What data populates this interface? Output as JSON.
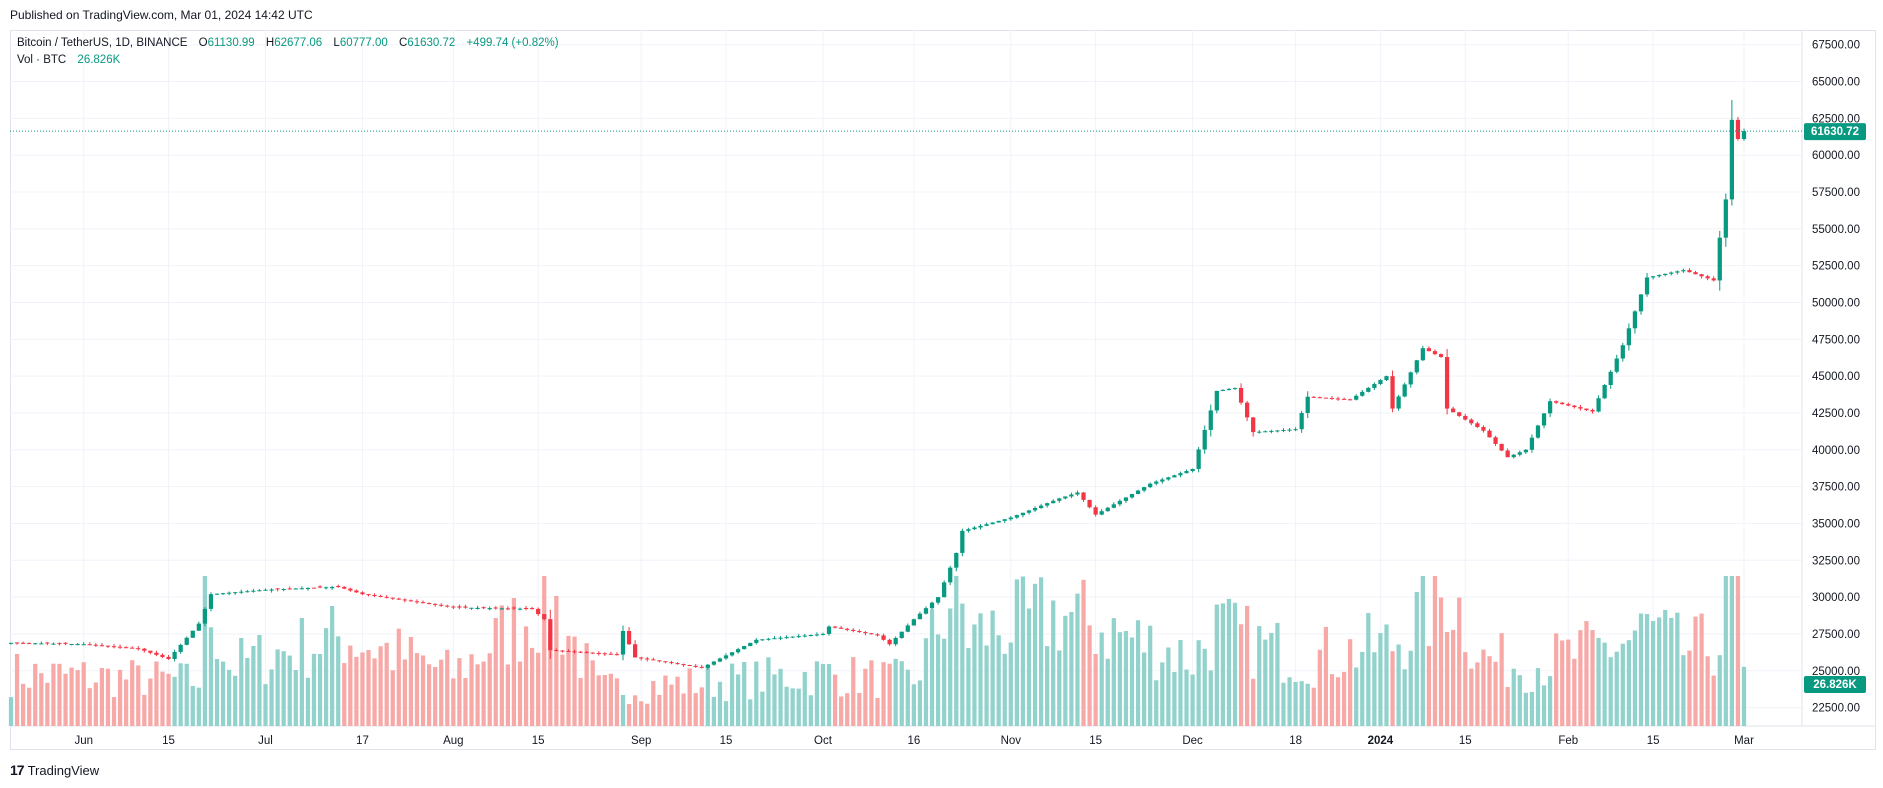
{
  "header": {
    "published": "Published on TradingView.com, Mar 01, 2024 14:42 UTC"
  },
  "legend": {
    "symbol": "Bitcoin / TetherUS, 1D, BINANCE",
    "o_label": "O",
    "o_value": "61130.99",
    "h_label": "H",
    "h_value": "62677.06",
    "l_label": "L",
    "l_value": "60777.00",
    "c_label": "C",
    "c_value": "61630.72",
    "change": "+499.74 (+0.82%)",
    "vol_label": "Vol · BTC",
    "vol_value": "26.826K"
  },
  "footer": {
    "brand": "TradingView",
    "logo_glyph": "17"
  },
  "colors": {
    "up": "#089981",
    "down": "#f23645",
    "vol_up": "#92d2cc",
    "vol_down": "#f7a9a7",
    "grid": "#f0f3fa",
    "price_line": "#089981"
  },
  "chart_data": {
    "type": "candlestick",
    "title": "Bitcoin / TetherUS, 1D, BINANCE",
    "interval": "1D",
    "date_range": [
      "2023-05-20",
      "2024-03-01"
    ],
    "ylim": [
      21250,
      68500
    ],
    "y_ticks": [
      "67500.00",
      "65000.00",
      "62500.00",
      "60000.00",
      "57500.00",
      "55000.00",
      "52500.00",
      "50000.00",
      "47500.00",
      "45000.00",
      "42500.00",
      "40000.00",
      "37500.00",
      "35000.00",
      "32500.00",
      "30000.00",
      "27500.00",
      "25000.00",
      "22500.00"
    ],
    "x_ticks": [
      {
        "label": "Jun",
        "date": "2023-06-01",
        "bold": false
      },
      {
        "label": "15",
        "date": "2023-06-15",
        "bold": false
      },
      {
        "label": "Jul",
        "date": "2023-07-01",
        "bold": false
      },
      {
        "label": "17",
        "date": "2023-07-17",
        "bold": false
      },
      {
        "label": "Aug",
        "date": "2023-08-01",
        "bold": false
      },
      {
        "label": "15",
        "date": "2023-08-15",
        "bold": false
      },
      {
        "label": "Sep",
        "date": "2023-09-01",
        "bold": false
      },
      {
        "label": "15",
        "date": "2023-09-15",
        "bold": false
      },
      {
        "label": "Oct",
        "date": "2023-10-01",
        "bold": false
      },
      {
        "label": "16",
        "date": "2023-10-16",
        "bold": false
      },
      {
        "label": "Nov",
        "date": "2023-11-01",
        "bold": false
      },
      {
        "label": "15",
        "date": "2023-11-15",
        "bold": false
      },
      {
        "label": "Dec",
        "date": "2023-12-01",
        "bold": false
      },
      {
        "label": "18",
        "date": "2023-12-18",
        "bold": false
      },
      {
        "label": "2024",
        "date": "2024-01-01",
        "bold": true
      },
      {
        "label": "15",
        "date": "2024-01-15",
        "bold": false
      },
      {
        "label": "Feb",
        "date": "2024-02-01",
        "bold": false
      },
      {
        "label": "15",
        "date": "2024-02-15",
        "bold": false
      },
      {
        "label": "Mar",
        "date": "2024-03-01",
        "bold": false
      }
    ],
    "price_path": [
      [
        "2023-05-20",
        26900
      ],
      [
        "2023-06-01",
        26800
      ],
      [
        "2023-06-10",
        26500
      ],
      [
        "2023-06-15",
        25800
      ],
      [
        "2023-06-20",
        28200
      ],
      [
        "2023-06-22",
        30200
      ],
      [
        "2023-07-01",
        30500
      ],
      [
        "2023-07-13",
        30700
      ],
      [
        "2023-07-17",
        30200
      ],
      [
        "2023-08-01",
        29300
      ],
      [
        "2023-08-14",
        29200
      ],
      [
        "2023-08-16",
        28500
      ],
      [
        "2023-08-17",
        26400
      ],
      [
        "2023-08-28",
        26100
      ],
      [
        "2023-08-29",
        27700
      ],
      [
        "2023-08-31",
        25900
      ],
      [
        "2023-09-11",
        25200
      ],
      [
        "2023-09-20",
        27100
      ],
      [
        "2023-10-01",
        27500
      ],
      [
        "2023-10-02",
        28000
      ],
      [
        "2023-10-10",
        27400
      ],
      [
        "2023-10-12",
        26800
      ],
      [
        "2023-10-16",
        28500
      ],
      [
        "2023-10-20",
        30000
      ],
      [
        "2023-10-23",
        33000
      ],
      [
        "2023-10-24",
        34500
      ],
      [
        "2023-11-01",
        35400
      ],
      [
        "2023-11-09",
        36700
      ],
      [
        "2023-11-12",
        37100
      ],
      [
        "2023-11-15",
        35600
      ],
      [
        "2023-11-24",
        37700
      ],
      [
        "2023-12-01",
        38700
      ],
      [
        "2023-12-05",
        44000
      ],
      [
        "2023-12-08",
        44200
      ],
      [
        "2023-12-11",
        41200
      ],
      [
        "2023-12-18",
        41400
      ],
      [
        "2023-12-20",
        43600
      ],
      [
        "2023-12-27",
        43400
      ],
      [
        "2024-01-02",
        45000
      ],
      [
        "2024-01-03",
        42800
      ],
      [
        "2024-01-08",
        46900
      ],
      [
        "2024-01-11",
        46300
      ],
      [
        "2024-01-12",
        42800
      ],
      [
        "2024-01-18",
        41300
      ],
      [
        "2024-01-22",
        39500
      ],
      [
        "2024-01-25",
        40000
      ],
      [
        "2024-01-29",
        43300
      ],
      [
        "2024-02-05",
        42600
      ],
      [
        "2024-02-10",
        47100
      ],
      [
        "2024-02-14",
        51700
      ],
      [
        "2024-02-20",
        52200
      ],
      [
        "2024-02-25",
        51500
      ],
      [
        "2024-02-26",
        54400
      ],
      [
        "2024-02-27",
        57000
      ],
      [
        "2024-02-28",
        62400
      ],
      [
        "2024-02-29",
        61100
      ],
      [
        "2024-03-01",
        61630.72
      ]
    ],
    "last_price": 61630.72,
    "last_price_label": "61630.72",
    "volume_label": "26.826K",
    "volume_path": [
      [
        "2023-05-20",
        0.35
      ],
      [
        "2023-06-20",
        0.3
      ],
      [
        "2023-06-21",
        0.9
      ],
      [
        "2023-06-25",
        0.4
      ],
      [
        "2023-07-14",
        0.6
      ],
      [
        "2023-08-01",
        0.35
      ],
      [
        "2023-08-17",
        0.85
      ],
      [
        "2023-08-25",
        0.25
      ],
      [
        "2023-09-15",
        0.3
      ],
      [
        "2023-10-01",
        0.35
      ],
      [
        "2023-10-16",
        0.3
      ],
      [
        "2023-10-23",
        0.95
      ],
      [
        "2023-10-25",
        0.6
      ],
      [
        "2023-11-09",
        0.75
      ],
      [
        "2023-12-01",
        0.45
      ],
      [
        "2023-12-05",
        0.65
      ],
      [
        "2023-12-11",
        0.55
      ],
      [
        "2023-12-20",
        0.45
      ],
      [
        "2024-01-03",
        0.55
      ],
      [
        "2024-01-11",
        0.85
      ],
      [
        "2024-01-12",
        0.95
      ],
      [
        "2024-01-18",
        0.45
      ],
      [
        "2024-01-25",
        0.4
      ],
      [
        "2024-02-10",
        0.55
      ],
      [
        "2024-02-14",
        0.65
      ],
      [
        "2024-02-20",
        0.5
      ],
      [
        "2024-02-26",
        0.55
      ],
      [
        "2024-02-28",
        0.97
      ],
      [
        "2024-02-29",
        0.85
      ],
      [
        "2024-03-01",
        0.28
      ]
    ]
  }
}
